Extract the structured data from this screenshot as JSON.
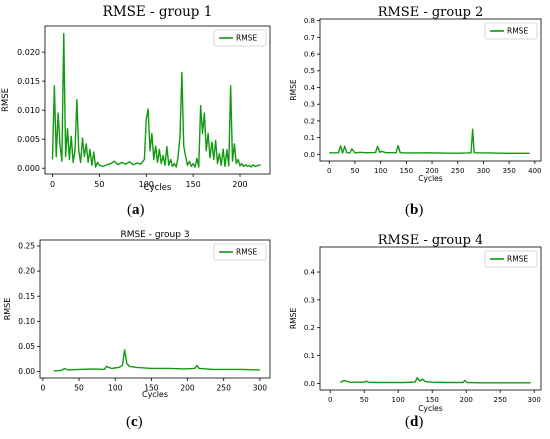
{
  "figure": {
    "panel_labels": [
      "a",
      "b",
      "c",
      "d"
    ]
  },
  "chart_data": [
    {
      "type": "line",
      "title": "RMSE - group 1",
      "xlabel": "Cycles",
      "ylabel": "RMSE",
      "xlim": [
        -8,
        232
      ],
      "ylim": [
        -0.001,
        0.0245
      ],
      "xticks": [
        0,
        50,
        100,
        150,
        200
      ],
      "xtick_labels": [
        "0",
        "50",
        "100",
        "150",
        "200"
      ],
      "yticks": [
        0.0,
        0.005,
        0.01,
        0.015,
        0.02
      ],
      "ytick_labels": [
        "0.000",
        "0.005",
        "0.010",
        "0.015",
        "0.020"
      ],
      "legend": "top-right",
      "color": "#119911",
      "series": [
        {
          "name": "RMSE",
          "x": [
            0,
            2,
            4,
            6,
            8,
            10,
            12,
            14,
            16,
            18,
            20,
            22,
            24,
            26,
            28,
            30,
            32,
            34,
            36,
            38,
            40,
            42,
            44,
            46,
            48,
            50,
            54,
            58,
            62,
            66,
            70,
            74,
            78,
            82,
            86,
            90,
            94,
            98,
            100,
            102,
            104,
            106,
            108,
            110,
            112,
            114,
            116,
            118,
            120,
            122,
            124,
            126,
            128,
            130,
            132,
            134,
            136,
            138,
            140,
            142,
            144,
            146,
            148,
            150,
            152,
            154,
            156,
            158,
            160,
            162,
            164,
            166,
            168,
            170,
            172,
            174,
            176,
            178,
            180,
            182,
            184,
            186,
            188,
            190,
            192,
            194,
            196,
            198,
            200,
            202,
            204,
            206,
            208,
            210,
            212,
            214,
            216,
            218,
            220,
            222
          ],
          "y": [
            0.0015,
            0.0142,
            0.002,
            0.0095,
            0.004,
            0.0012,
            0.0232,
            0.002,
            0.0068,
            0.0015,
            0.0055,
            0.001,
            0.003,
            0.0118,
            0.003,
            0.001,
            0.0052,
            0.002,
            0.0042,
            0.001,
            0.0032,
            0.0005,
            0.0028,
            0.0002,
            0.001,
            0.0005,
            0.0003,
            0.0006,
            0.0008,
            0.0012,
            0.0006,
            0.001,
            0.0007,
            0.0011,
            0.0006,
            0.0009,
            0.0007,
            0.0015,
            0.0085,
            0.0102,
            0.003,
            0.006,
            0.0015,
            0.0038,
            0.001,
            0.0032,
            0.0008,
            0.0022,
            0.0005,
            0.0037,
            0.0005,
            0.0015,
            0.0003,
            0.0008,
            0.0002,
            0.002,
            0.0055,
            0.0165,
            0.0038,
            0.002,
            0.0005,
            0.0012,
            0.0003,
            0.0008,
            0.0002,
            0.0017,
            0.0002,
            0.0108,
            0.006,
            0.0095,
            0.003,
            0.006,
            0.0018,
            0.0045,
            0.0015,
            0.0048,
            0.0008,
            0.0025,
            0.0005,
            0.0033,
            0.0003,
            0.0032,
            0.0004,
            0.0142,
            0.0012,
            0.0042,
            0.0008,
            0.0015,
            0.0004,
            0.0008,
            0.0003,
            0.0006,
            0.0003,
            0.0005,
            0.0002,
            0.0006,
            0.0003,
            0.0004,
            0.0005,
            0.0006
          ]
        }
      ]
    },
    {
      "type": "line",
      "title": "RMSE - group 2",
      "xlabel": "Cycles",
      "ylabel": "RMSE",
      "xlim": [
        -18,
        412
      ],
      "ylim": [
        -0.04,
        0.81
      ],
      "xticks": [
        0,
        50,
        100,
        150,
        200,
        250,
        300,
        350,
        400
      ],
      "xtick_labels": [
        "0",
        "50",
        "100",
        "150",
        "200",
        "250",
        "300",
        "350",
        "400"
      ],
      "yticks": [
        0.0,
        0.1,
        0.2,
        0.3,
        0.4,
        0.5,
        0.6,
        0.7,
        0.8
      ],
      "ytick_labels": [
        "0.0",
        "0.1",
        "0.2",
        "0.3",
        "0.4",
        "0.5",
        "0.6",
        "0.7",
        "0.8"
      ],
      "legend": "top-right",
      "color": "#119911",
      "series": [
        {
          "name": "RMSE",
          "x": [
            0,
            10,
            18,
            22,
            26,
            30,
            34,
            40,
            44,
            50,
            60,
            70,
            80,
            90,
            94,
            98,
            102,
            110,
            120,
            130,
            134,
            138,
            150,
            170,
            190,
            210,
            230,
            250,
            270,
            276,
            279,
            282,
            290,
            310,
            330,
            350,
            370,
            390
          ],
          "y": [
            0.01,
            0.008,
            0.01,
            0.05,
            0.008,
            0.048,
            0.01,
            0.008,
            0.032,
            0.008,
            0.012,
            0.01,
            0.01,
            0.011,
            0.048,
            0.012,
            0.018,
            0.01,
            0.01,
            0.009,
            0.052,
            0.01,
            0.008,
            0.008,
            0.009,
            0.008,
            0.007,
            0.007,
            0.008,
            0.01,
            0.15,
            0.01,
            0.009,
            0.008,
            0.007,
            0.006,
            0.006,
            0.006
          ]
        }
      ]
    },
    {
      "type": "line",
      "title": "RMSE - group 3",
      "xlabel": "Cycles",
      "ylabel": "RMSE",
      "xlim": [
        -4,
        314
      ],
      "ylim": [
        -0.013,
        0.262
      ],
      "xticks": [
        0,
        50,
        100,
        150,
        200,
        250,
        300
      ],
      "xtick_labels": [
        "0",
        "50",
        "100",
        "150",
        "200",
        "250",
        "300"
      ],
      "yticks": [
        0.0,
        0.05,
        0.1,
        0.15,
        0.2,
        0.25
      ],
      "ytick_labels": [
        "0.00",
        "0.05",
        "0.10",
        "0.15",
        "0.20",
        "0.25"
      ],
      "legend": "top-right",
      "color": "#119911",
      "series": [
        {
          "name": "RMSE",
          "x": [
            15,
            25,
            30,
            35,
            50,
            70,
            85,
            88,
            95,
            105,
            110,
            113,
            116,
            120,
            130,
            150,
            175,
            195,
            210,
            213,
            216,
            235,
            255,
            275,
            300
          ],
          "y": [
            0.001,
            0.002,
            0.006,
            0.003,
            0.004,
            0.005,
            0.004,
            0.01,
            0.006,
            0.008,
            0.012,
            0.043,
            0.016,
            0.01,
            0.008,
            0.006,
            0.006,
            0.005,
            0.006,
            0.012,
            0.006,
            0.004,
            0.004,
            0.004,
            0.003
          ]
        }
      ]
    },
    {
      "type": "line",
      "title": "RMSE - group 4",
      "xlabel": "Cycles",
      "ylabel": "RMSE",
      "xlim": [
        -15,
        310
      ],
      "ylim": [
        -0.024,
        0.49
      ],
      "xticks": [
        0,
        50,
        100,
        150,
        200,
        250,
        300
      ],
      "xtick_labels": [
        "0",
        "50",
        "100",
        "150",
        "200",
        "250",
        "300"
      ],
      "yticks": [
        0.0,
        0.1,
        0.2,
        0.3,
        0.4
      ],
      "ytick_labels": [
        "0.0",
        "0.1",
        "0.2",
        "0.3",
        "0.4"
      ],
      "legend": "top-right",
      "color": "#119911",
      "series": [
        {
          "name": "RMSE",
          "x": [
            15,
            18,
            22,
            25,
            30,
            40,
            50,
            53,
            56,
            70,
            90,
            110,
            125,
            128,
            132,
            136,
            140,
            150,
            170,
            195,
            198,
            201,
            220,
            250,
            280,
            295
          ],
          "y": [
            0.003,
            0.008,
            0.01,
            0.006,
            0.004,
            0.004,
            0.004,
            0.008,
            0.004,
            0.003,
            0.003,
            0.003,
            0.005,
            0.02,
            0.008,
            0.015,
            0.006,
            0.004,
            0.003,
            0.003,
            0.01,
            0.003,
            0.002,
            0.002,
            0.002,
            0.002
          ]
        }
      ]
    }
  ]
}
